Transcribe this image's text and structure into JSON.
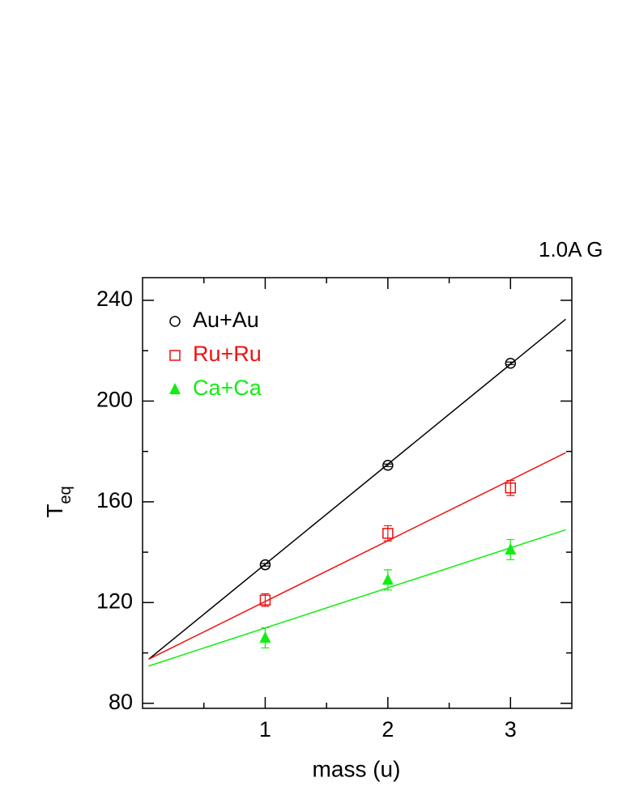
{
  "chart_data": {
    "type": "scatter",
    "title": "1.0A G",
    "x_label": "mass (u)",
    "y_label": "T",
    "y_label_subscript": "eq",
    "xlim": [
      0,
      3.5
    ],
    "ylim": [
      78,
      249
    ],
    "xticks": [
      1,
      2,
      3
    ],
    "yticks": [
      80,
      120,
      160,
      200,
      240
    ],
    "minor_xticks": [
      0.5,
      1.5,
      2.5
    ],
    "minor_yticks": [
      100,
      140,
      180,
      220
    ],
    "legend": "upper left",
    "x": [
      1,
      2,
      3
    ],
    "series": [
      {
        "name": "Au+Au",
        "color": "#000000",
        "marker": "circle",
        "values": [
          135,
          174.5,
          215
        ],
        "errors": [
          0.5,
          0.5,
          0.5
        ],
        "fit": {
          "x": [
            0.05,
            3.45
          ],
          "values": [
            97.5,
            232.5
          ]
        }
      },
      {
        "name": "Ru+Ru",
        "color": "#ee1111",
        "marker": "square",
        "values": [
          121,
          147.5,
          165.5
        ],
        "errors": [
          2.5,
          3,
          3
        ],
        "fit": {
          "x": [
            0.05,
            3.45
          ],
          "values": [
            97.5,
            179.5
          ]
        }
      },
      {
        "name": "Ca+Ca",
        "color": "#11ee11",
        "marker": "triangle",
        "values": [
          106,
          129,
          141
        ],
        "errors": [
          4,
          4,
          4
        ],
        "fit": {
          "x": [
            0.05,
            3.45
          ],
          "values": [
            94.8,
            148.9
          ]
        }
      }
    ]
  }
}
